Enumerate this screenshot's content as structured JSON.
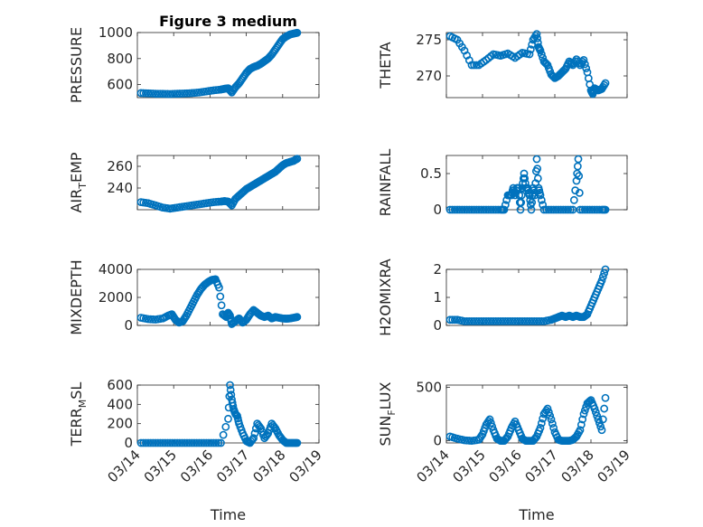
{
  "chart_data": [
    {
      "type": "scatter",
      "title": "Figure 3 medium",
      "ylabel": "PRESSURE",
      "xlabel": "",
      "xlim": [
        0,
        5
      ],
      "xticks": [],
      "xtick_labels": [
        "03/14",
        "03/15",
        "03/16",
        "03/17",
        "03/18",
        "03/19"
      ],
      "ylim": [
        500,
        1000
      ],
      "yticks": [
        600,
        800,
        1000
      ],
      "ytick_labels": [
        "600",
        "800",
        "1000"
      ],
      "grid": true,
      "x": [
        0.1,
        0.3,
        0.5,
        0.7,
        0.9,
        1.1,
        1.3,
        1.5,
        1.7,
        1.9,
        2.1,
        2.3,
        2.4,
        2.5,
        2.6,
        2.7,
        2.8,
        2.9,
        3.0,
        3.1,
        3.2,
        3.3,
        3.4,
        3.5,
        3.6,
        3.7,
        3.8,
        3.9,
        4.0,
        4.1,
        4.2,
        4.3,
        4.4
      ],
      "y": [
        535,
        533,
        530,
        529,
        528,
        530,
        532,
        535,
        540,
        548,
        556,
        562,
        568,
        572,
        540,
        580,
        610,
        650,
        690,
        720,
        735,
        745,
        760,
        780,
        800,
        830,
        870,
        910,
        950,
        970,
        985,
        992,
        998
      ]
    },
    {
      "type": "scatter",
      "title": "",
      "ylabel": "THETA",
      "xlabel": "",
      "xlim": [
        0,
        5
      ],
      "xticks": [],
      "xtick_labels": [
        "03/14",
        "03/15",
        "03/16",
        "03/17",
        "03/18",
        "03/19"
      ],
      "ylim": [
        267,
        276
      ],
      "yticks": [
        270,
        275
      ],
      "ytick_labels": [
        "270",
        "275"
      ],
      "grid": true,
      "x": [
        0.1,
        0.3,
        0.5,
        0.7,
        0.9,
        1.1,
        1.3,
        1.5,
        1.7,
        1.9,
        2.1,
        2.3,
        2.4,
        2.5,
        2.55,
        2.6,
        2.7,
        2.8,
        2.9,
        3.0,
        3.1,
        3.2,
        3.3,
        3.4,
        3.5,
        3.6,
        3.7,
        3.8,
        3.9,
        4.0,
        4.05,
        4.1,
        4.2,
        4.3,
        4.4
      ],
      "y": [
        275.5,
        275,
        273.5,
        271.5,
        271.5,
        272.2,
        273,
        272.8,
        273.1,
        272.5,
        273.2,
        273,
        275,
        275.8,
        274,
        273.5,
        272,
        271.5,
        270.2,
        269.7,
        270,
        270.5,
        271,
        272,
        271.5,
        272.3,
        271.5,
        272.2,
        270.5,
        268,
        267.5,
        268.3,
        268,
        268.2,
        269
      ]
    },
    {
      "type": "scatter",
      "title": "",
      "ylabel": "AIR_TEMP",
      "xlabel": "",
      "xlim": [
        0,
        5
      ],
      "xticks": [],
      "xtick_labels": [
        "03/14",
        "03/15",
        "03/16",
        "03/17",
        "03/18",
        "03/19"
      ],
      "ylim": [
        220,
        270
      ],
      "yticks": [
        240,
        260
      ],
      "ytick_labels": [
        "240",
        "260"
      ],
      "grid": true,
      "x": [
        0.1,
        0.3,
        0.5,
        0.7,
        0.9,
        1.1,
        1.3,
        1.5,
        1.7,
        1.9,
        2.1,
        2.3,
        2.4,
        2.5,
        2.6,
        2.7,
        2.8,
        2.9,
        3.0,
        3.1,
        3.2,
        3.3,
        3.4,
        3.5,
        3.6,
        3.7,
        3.8,
        3.9,
        4.0,
        4.1,
        4.2,
        4.3,
        4.4
      ],
      "y": [
        227,
        226,
        224,
        222,
        221,
        222,
        223,
        224,
        225,
        226,
        227,
        227.5,
        228,
        227.5,
        224,
        230,
        233,
        236,
        239,
        241,
        243,
        245,
        247,
        249,
        251,
        253,
        255,
        258,
        261,
        263,
        264,
        265,
        267
      ]
    },
    {
      "type": "scatter",
      "title": "",
      "ylabel": "RAINFALL",
      "xlabel": "",
      "xlim": [
        0,
        5
      ],
      "xticks": [],
      "xtick_labels": [
        "03/14",
        "03/15",
        "03/16",
        "03/17",
        "03/18",
        "03/19"
      ],
      "ylim": [
        0,
        0.75
      ],
      "yticks": [
        0,
        0.5
      ],
      "ytick_labels": [
        "0",
        "0.5"
      ],
      "grid": true,
      "x": [
        0.1,
        0.3,
        0.5,
        0.7,
        0.9,
        1.1,
        1.3,
        1.5,
        1.6,
        1.7,
        1.8,
        1.85,
        1.9,
        1.95,
        2.0,
        2.05,
        2.1,
        2.15,
        2.2,
        2.25,
        2.3,
        2.35,
        2.4,
        2.45,
        2.5,
        2.55,
        2.6,
        2.7,
        2.9,
        3.1,
        3.3,
        3.5,
        3.6,
        3.65,
        3.7,
        3.9,
        4.1,
        4.3,
        4.4
      ],
      "y": [
        0,
        0,
        0,
        0,
        0,
        0,
        0,
        0,
        0,
        0.2,
        0.2,
        0.3,
        0.2,
        0.3,
        0.3,
        0,
        0.3,
        0.5,
        0.3,
        0.3,
        0.2,
        0,
        0.3,
        0.2,
        0.7,
        0.3,
        0.2,
        0,
        0,
        0,
        0,
        0,
        0.4,
        0.7,
        0,
        0,
        0,
        0,
        0
      ]
    },
    {
      "type": "scatter",
      "title": "",
      "ylabel": "MIXDEPTH",
      "xlabel": "",
      "xlim": [
        0,
        5
      ],
      "xticks": [],
      "xtick_labels": [
        "03/14",
        "03/15",
        "03/16",
        "03/17",
        "03/18",
        "03/19"
      ],
      "ylim": [
        0,
        4000
      ],
      "yticks": [
        0,
        2000,
        4000
      ],
      "ytick_labels": [
        "0",
        "2000",
        "4000"
      ],
      "grid": true,
      "x": [
        0.1,
        0.3,
        0.5,
        0.7,
        0.85,
        0.95,
        1.05,
        1.15,
        1.25,
        1.35,
        1.45,
        1.55,
        1.65,
        1.75,
        1.85,
        1.95,
        2.05,
        2.15,
        2.25,
        2.35,
        2.45,
        2.5,
        2.55,
        2.6,
        2.7,
        2.8,
        2.9,
        3.0,
        3.1,
        3.2,
        3.3,
        3.4,
        3.5,
        3.6,
        3.7,
        3.8,
        3.9,
        4.0,
        4.1,
        4.2,
        4.3,
        4.4
      ],
      "y": [
        550,
        450,
        420,
        500,
        700,
        800,
        400,
        200,
        300,
        700,
        1200,
        1700,
        2200,
        2600,
        2900,
        3100,
        3250,
        3300,
        2700,
        800,
        600,
        900,
        700,
        100,
        300,
        500,
        200,
        400,
        800,
        1100,
        900,
        700,
        600,
        700,
        500,
        600,
        550,
        500,
        480,
        500,
        550,
        600
      ]
    },
    {
      "type": "scatter",
      "title": "",
      "ylabel": "H2OMIXRA",
      "xlabel": "",
      "xlim": [
        0,
        5
      ],
      "xticks": [],
      "xtick_labels": [
        "03/14",
        "03/15",
        "03/16",
        "03/17",
        "03/18",
        "03/19"
      ],
      "ylim": [
        0,
        2
      ],
      "yticks": [
        0,
        1,
        2
      ],
      "ytick_labels": [
        "0",
        "1",
        "2"
      ],
      "grid": true,
      "x": [
        0.1,
        0.3,
        0.5,
        0.7,
        0.9,
        1.1,
        1.3,
        1.5,
        1.7,
        1.9,
        2.1,
        2.3,
        2.5,
        2.7,
        2.9,
        3.0,
        3.1,
        3.2,
        3.3,
        3.4,
        3.5,
        3.6,
        3.7,
        3.8,
        3.9,
        4.0,
        4.1,
        4.2,
        4.3,
        4.4
      ],
      "y": [
        0.2,
        0.2,
        0.15,
        0.15,
        0.15,
        0.15,
        0.15,
        0.15,
        0.15,
        0.15,
        0.15,
        0.15,
        0.15,
        0.15,
        0.2,
        0.25,
        0.3,
        0.35,
        0.3,
        0.35,
        0.3,
        0.35,
        0.3,
        0.3,
        0.4,
        0.7,
        1.0,
        1.3,
        1.6,
        2.0
      ]
    },
    {
      "type": "scatter",
      "title": "",
      "ylabel": "TERR_MSL",
      "xlabel": "Time",
      "xlim": [
        0,
        5
      ],
      "xticks": [
        0,
        1,
        2,
        3,
        4,
        5
      ],
      "xtick_labels": [
        "03/14",
        "03/15",
        "03/16",
        "03/17",
        "03/18",
        "03/19"
      ],
      "ylim": [
        0,
        600
      ],
      "yticks": [
        0,
        200,
        400,
        600
      ],
      "ytick_labels": [
        "0",
        "200",
        "400",
        "600"
      ],
      "grid": true,
      "x": [
        0.1,
        0.3,
        0.5,
        0.7,
        0.9,
        1.1,
        1.3,
        1.5,
        1.7,
        1.9,
        2.1,
        2.3,
        2.5,
        2.55,
        2.6,
        2.65,
        2.7,
        2.75,
        2.8,
        2.9,
        3.0,
        3.1,
        3.2,
        3.3,
        3.4,
        3.5,
        3.6,
        3.7,
        3.8,
        3.9,
        4.0,
        4.1,
        4.2,
        4.3,
        4.4
      ],
      "y": [
        0,
        0,
        0,
        0,
        0,
        0,
        0,
        0,
        0,
        0,
        0,
        0,
        250,
        600,
        450,
        350,
        300,
        280,
        200,
        100,
        20,
        0,
        50,
        200,
        150,
        50,
        100,
        200,
        150,
        80,
        30,
        0,
        0,
        0,
        0
      ]
    },
    {
      "type": "scatter",
      "title": "",
      "ylabel": "SUN_FLUX",
      "xlabel": "Time",
      "xlim": [
        0,
        5
      ],
      "xticks": [
        0,
        1,
        2,
        3,
        4,
        5
      ],
      "xtick_labels": [
        "03/14",
        "03/15",
        "03/16",
        "03/17",
        "03/18",
        "03/19"
      ],
      "ylim": [
        -20,
        520
      ],
      "yticks": [
        0,
        500
      ],
      "ytick_labels": [
        "0",
        "500"
      ],
      "grid": true,
      "x": [
        0.1,
        0.3,
        0.5,
        0.7,
        0.9,
        1.0,
        1.1,
        1.2,
        1.3,
        1.4,
        1.5,
        1.6,
        1.7,
        1.8,
        1.9,
        2.0,
        2.1,
        2.2,
        2.3,
        2.4,
        2.5,
        2.6,
        2.7,
        2.8,
        2.9,
        3.0,
        3.1,
        3.2,
        3.3,
        3.4,
        3.5,
        3.6,
        3.7,
        3.8,
        3.9,
        4.0,
        4.1,
        4.2,
        4.3,
        4.4
      ],
      "y": [
        40,
        20,
        5,
        0,
        10,
        60,
        150,
        200,
        100,
        20,
        0,
        0,
        40,
        120,
        180,
        100,
        20,
        0,
        0,
        0,
        40,
        120,
        250,
        300,
        200,
        80,
        10,
        0,
        0,
        0,
        10,
        40,
        100,
        250,
        350,
        380,
        300,
        200,
        100,
        400
      ]
    }
  ]
}
